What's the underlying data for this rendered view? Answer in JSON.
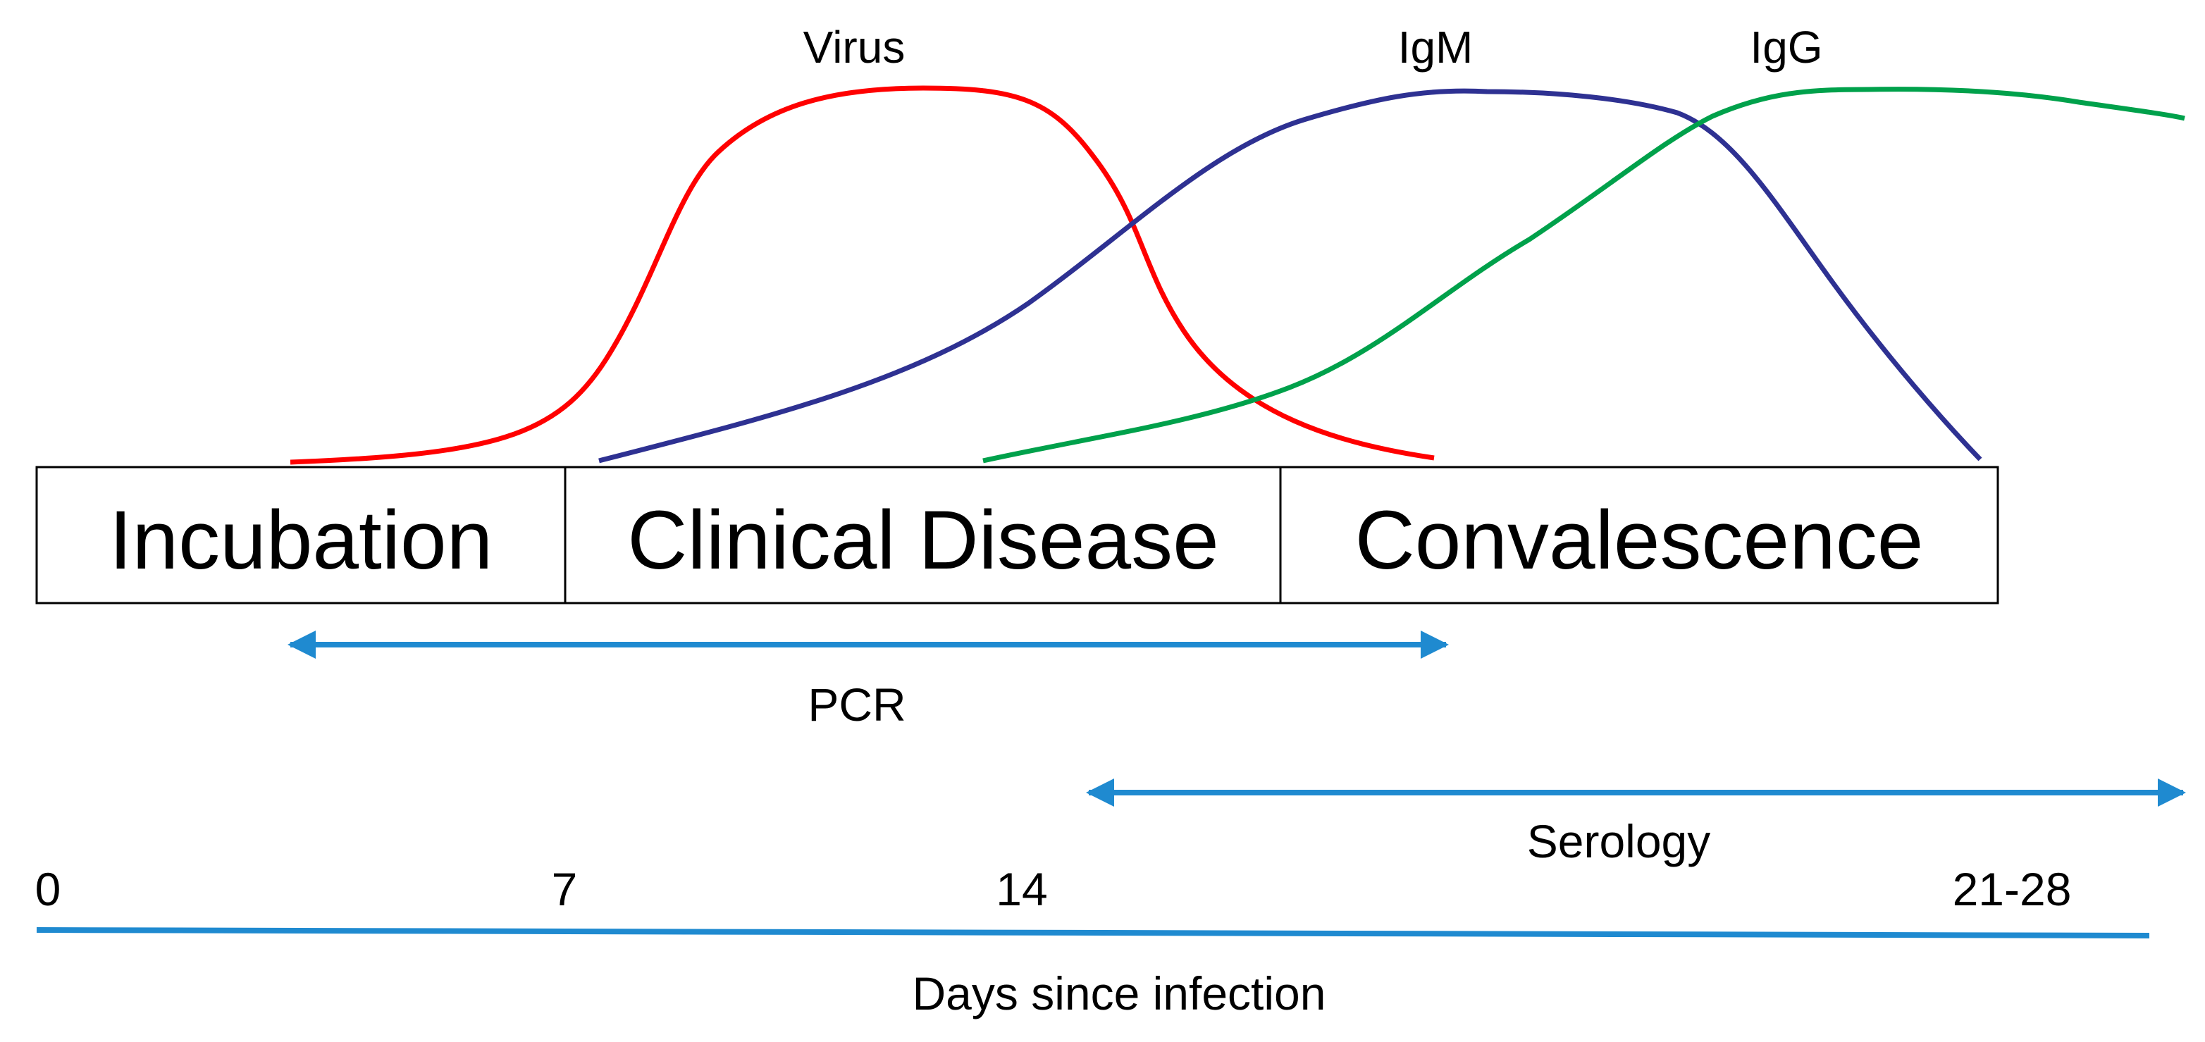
{
  "curves": [
    {
      "id": "virus",
      "label": "Virus",
      "color": "#ff0000"
    },
    {
      "id": "igm",
      "label": "IgM",
      "color": "#2e3192"
    },
    {
      "id": "igg",
      "label": "IgG",
      "color": "#00a14b"
    }
  ],
  "stages": [
    {
      "id": "incubation",
      "label": "Incubation"
    },
    {
      "id": "clinical",
      "label": "Clinical Disease"
    },
    {
      "id": "convalescence",
      "label": "Convalescence"
    }
  ],
  "tests": [
    {
      "id": "pcr",
      "label": "PCR",
      "color": "#1f8ad0"
    },
    {
      "id": "serology",
      "label": "Serology",
      "color": "#1f8ad0"
    }
  ],
  "timeline": {
    "ticks": [
      "0",
      "7",
      "14",
      "21-28"
    ],
    "title": "Days since infection",
    "color": "#1f8ad0"
  }
}
